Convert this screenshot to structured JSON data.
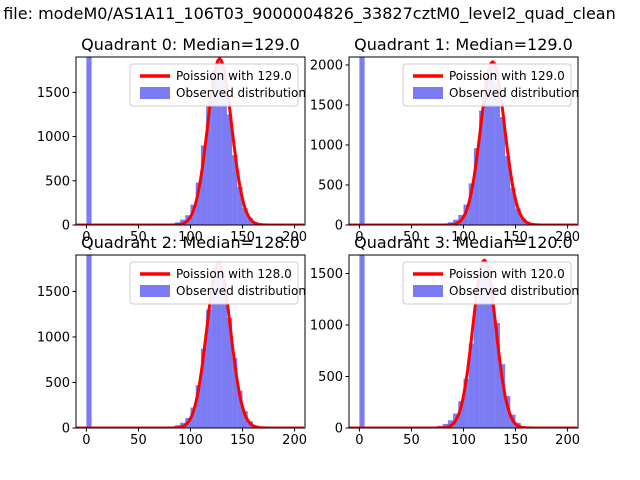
{
  "figure": {
    "suptitle": "n file: modeM0/AS1A11_106T03_9000004826_33827cztM0_level2_quad_clean",
    "background": "#ffffff",
    "colors": {
      "histogram": "#2a2aee",
      "histogram_opacity": 0.62,
      "curve": "#ff0000",
      "axis": "#000000",
      "legend_border": "#cccccc"
    }
  },
  "chart_data": [
    {
      "type": "histogram+line",
      "title": "Quadrant 0: Median=129.0",
      "median": 129.0,
      "legend": [
        "Poission with 129.0",
        "Observed distribution"
      ],
      "bin_start": 0,
      "bin_width": 5,
      "bins": [
        30000,
        0,
        0,
        0,
        0,
        0,
        0,
        0,
        0,
        0,
        0,
        0,
        0,
        0,
        3,
        8,
        16,
        30,
        60,
        110,
        230,
        480,
        900,
        1340,
        1750,
        1850,
        1640,
        1250,
        790,
        430,
        190,
        80,
        30,
        12,
        5,
        0,
        0,
        0,
        0,
        0
      ],
      "curve": {
        "lambda": 129.0,
        "mu": 128,
        "sigma": 11.4,
        "peak": 1880
      },
      "xlim": [
        -10,
        210
      ],
      "ylim": [
        0,
        1900
      ],
      "xticks": [
        0,
        50,
        100,
        150,
        200
      ],
      "yticks": [
        0,
        500,
        1000,
        1500
      ]
    },
    {
      "type": "histogram+line",
      "title": "Quadrant 1: Median=129.0",
      "median": 129.0,
      "legend": [
        "Poission with 129.0",
        "Observed distribution"
      ],
      "bin_start": 0,
      "bin_width": 5,
      "bins": [
        30000,
        0,
        0,
        0,
        0,
        0,
        0,
        0,
        0,
        0,
        0,
        0,
        0,
        0,
        4,
        9,
        18,
        34,
        66,
        125,
        255,
        520,
        960,
        1430,
        1870,
        2000,
        1780,
        1350,
        860,
        460,
        205,
        85,
        32,
        13,
        5,
        0,
        0,
        0,
        0,
        0
      ],
      "curve": {
        "lambda": 129.0,
        "mu": 128,
        "sigma": 11.4,
        "peak": 2040
      },
      "xlim": [
        -10,
        210
      ],
      "ylim": [
        0,
        2100
      ],
      "xticks": [
        0,
        50,
        100,
        150,
        200
      ],
      "yticks": [
        0,
        500,
        1000,
        1500,
        2000
      ]
    },
    {
      "type": "histogram+line",
      "title": "Quadrant 2: Median=128.0",
      "median": 128.0,
      "legend": [
        "Poission with 128.0",
        "Observed distribution"
      ],
      "bin_start": 0,
      "bin_width": 5,
      "bins": [
        30000,
        0,
        0,
        0,
        0,
        0,
        0,
        0,
        0,
        0,
        0,
        0,
        0,
        0,
        3,
        8,
        15,
        30,
        58,
        110,
        225,
        470,
        870,
        1300,
        1680,
        1780,
        1590,
        1210,
        770,
        410,
        185,
        75,
        28,
        11,
        4,
        0,
        0,
        0,
        0,
        0
      ],
      "curve": {
        "lambda": 128.0,
        "mu": 127,
        "sigma": 11.3,
        "peak": 1810
      },
      "xlim": [
        -10,
        210
      ],
      "ylim": [
        0,
        1900
      ],
      "xticks": [
        0,
        50,
        100,
        150,
        200
      ],
      "yticks": [
        0,
        500,
        1000,
        1500
      ]
    },
    {
      "type": "histogram+line",
      "title": "Quadrant 3: Median=120.0",
      "median": 120.0,
      "legend": [
        "Poission with 120.0",
        "Observed distribution"
      ],
      "bin_start": 0,
      "bin_width": 5,
      "bins": [
        30000,
        0,
        0,
        0,
        0,
        0,
        0,
        0,
        0,
        0,
        0,
        0,
        3,
        6,
        12,
        22,
        40,
        75,
        140,
        260,
        480,
        820,
        1230,
        1520,
        1600,
        1400,
        1020,
        620,
        310,
        130,
        50,
        18,
        7,
        0,
        0,
        0,
        0,
        0,
        0,
        0
      ],
      "curve": {
        "lambda": 120.0,
        "mu": 120,
        "sigma": 11.0,
        "peak": 1630
      },
      "xlim": [
        -10,
        210
      ],
      "ylim": [
        0,
        1680
      ],
      "xticks": [
        0,
        50,
        100,
        150,
        200
      ],
      "yticks": [
        0,
        500,
        1000,
        1500
      ]
    }
  ]
}
